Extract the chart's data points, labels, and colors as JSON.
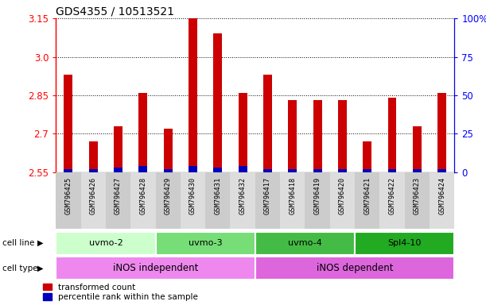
{
  "title": "GDS4355 / 10513521",
  "samples": [
    "GSM796425",
    "GSM796426",
    "GSM796427",
    "GSM796428",
    "GSM796429",
    "GSM796430",
    "GSM796431",
    "GSM796432",
    "GSM796417",
    "GSM796418",
    "GSM796419",
    "GSM796420",
    "GSM796421",
    "GSM796422",
    "GSM796423",
    "GSM796424"
  ],
  "transformed_count": [
    2.93,
    2.67,
    2.73,
    2.86,
    2.72,
    3.15,
    3.09,
    2.86,
    2.93,
    2.83,
    2.83,
    2.83,
    2.67,
    2.84,
    2.73,
    2.86
  ],
  "percentile_rank": [
    2,
    2,
    3,
    4,
    2,
    4,
    3,
    4,
    2,
    2,
    2,
    2,
    2,
    2,
    2,
    2
  ],
  "y_min": 2.55,
  "y_max": 3.15,
  "y_ticks": [
    2.55,
    2.7,
    2.85,
    3.0,
    3.15
  ],
  "right_y_ticks": [
    0,
    25,
    50,
    75,
    100
  ],
  "right_y_labels": [
    "0",
    "25",
    "50",
    "75",
    "100%"
  ],
  "bar_color_red": "#cc0000",
  "bar_color_blue": "#0000bb",
  "cell_lines": [
    {
      "label": "uvmo-2",
      "start": 0,
      "end": 4,
      "color": "#ccffcc"
    },
    {
      "label": "uvmo-3",
      "start": 4,
      "end": 8,
      "color": "#77dd77"
    },
    {
      "label": "uvmo-4",
      "start": 8,
      "end": 12,
      "color": "#44bb44"
    },
    {
      "label": "Spl4-10",
      "start": 12,
      "end": 16,
      "color": "#22aa22"
    }
  ],
  "cell_types": [
    {
      "label": "iNOS independent",
      "start": 0,
      "end": 8,
      "color": "#ee88ee"
    },
    {
      "label": "iNOS dependent",
      "start": 8,
      "end": 16,
      "color": "#dd66dd"
    }
  ],
  "bar_width": 0.35,
  "title_fontsize": 10
}
